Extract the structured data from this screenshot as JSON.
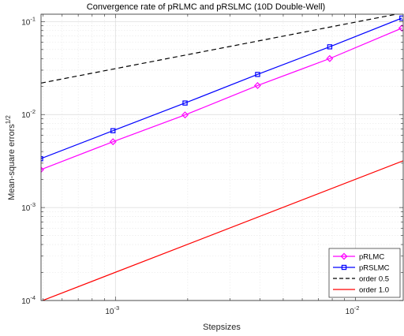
{
  "chart_data": {
    "type": "line",
    "title": "Convergence rate of pRLMC and pRSLMC (10D Double-Well)",
    "xlabel": "Stepsizes",
    "ylabel": "Mean-square errors",
    "ylabel_superscript": "1/2",
    "xscale": "log",
    "yscale": "log",
    "xlim": [
      0.00049,
      0.0158
    ],
    "ylim": [
      0.0001,
      0.12
    ],
    "grid": true,
    "legend_position": "bottom-right",
    "x_ticks": [
      {
        "value": 0.001,
        "base": "10",
        "exp": "-3"
      },
      {
        "value": 0.01,
        "base": "10",
        "exp": "-2"
      }
    ],
    "y_ticks": [
      {
        "value": 0.0001,
        "base": "10",
        "exp": "-4"
      },
      {
        "value": 0.001,
        "base": "10",
        "exp": "-3"
      },
      {
        "value": 0.01,
        "base": "10",
        "exp": "-2"
      },
      {
        "value": 0.1,
        "base": "10",
        "exp": "-1"
      }
    ],
    "series": [
      {
        "name": "pRLMC",
        "color": "#ff00ff",
        "marker": "diamond",
        "style": "solid",
        "x": [
          0.000488,
          0.000977,
          0.00195,
          0.00391,
          0.00781,
          0.0156
        ],
        "y": [
          0.00255,
          0.0051,
          0.0099,
          0.0205,
          0.04,
          0.085
        ]
      },
      {
        "name": "pRSLMC",
        "color": "#0000ff",
        "marker": "square",
        "style": "solid",
        "x": [
          0.000488,
          0.000977,
          0.00195,
          0.00391,
          0.00781,
          0.0156
        ],
        "y": [
          0.00335,
          0.0067,
          0.0133,
          0.027,
          0.0535,
          0.109
        ]
      },
      {
        "name": "order 0.5",
        "color": "#000000",
        "marker": "none",
        "style": "dashed",
        "x": [
          0.00049,
          0.0158
        ],
        "y": [
          0.0218,
          0.124
        ]
      },
      {
        "name": "order 1.0",
        "color": "#ff0000",
        "marker": "none",
        "style": "solid",
        "x": [
          0.00049,
          0.0158
        ],
        "y": [
          9.85e-05,
          0.00318
        ]
      }
    ]
  }
}
